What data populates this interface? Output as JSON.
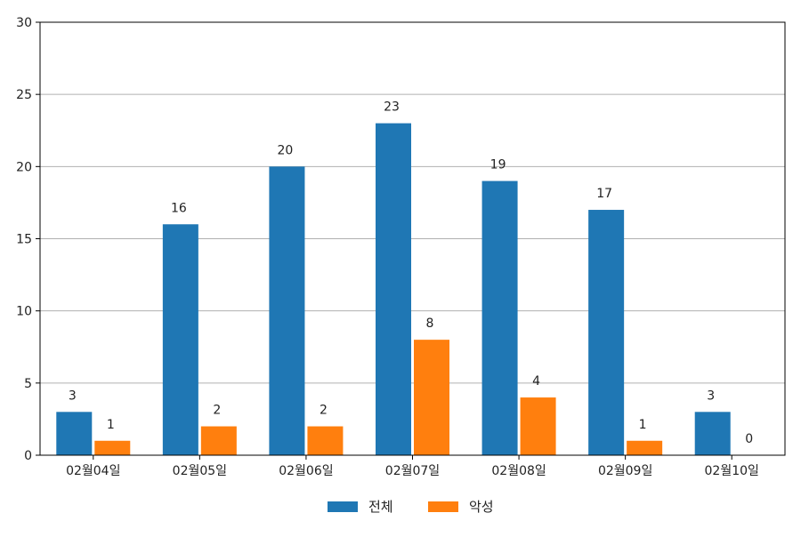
{
  "chart_data": {
    "type": "bar",
    "categories": [
      "02월04일",
      "02월05일",
      "02월06일",
      "02월07일",
      "02월08일",
      "02월09일",
      "02월10일"
    ],
    "series": [
      {
        "name": "전체",
        "values": [
          3,
          16,
          20,
          23,
          19,
          17,
          3
        ],
        "color": "#1f77b4"
      },
      {
        "name": "악성",
        "values": [
          1,
          2,
          2,
          8,
          4,
          1,
          0
        ],
        "color": "#ff7f0e"
      }
    ],
    "ylim": [
      0,
      30
    ],
    "yticks": [
      0,
      5,
      10,
      15,
      20,
      25,
      30
    ],
    "grid": "horizontal",
    "legend_position": "bottom-center",
    "data_labels": true
  }
}
